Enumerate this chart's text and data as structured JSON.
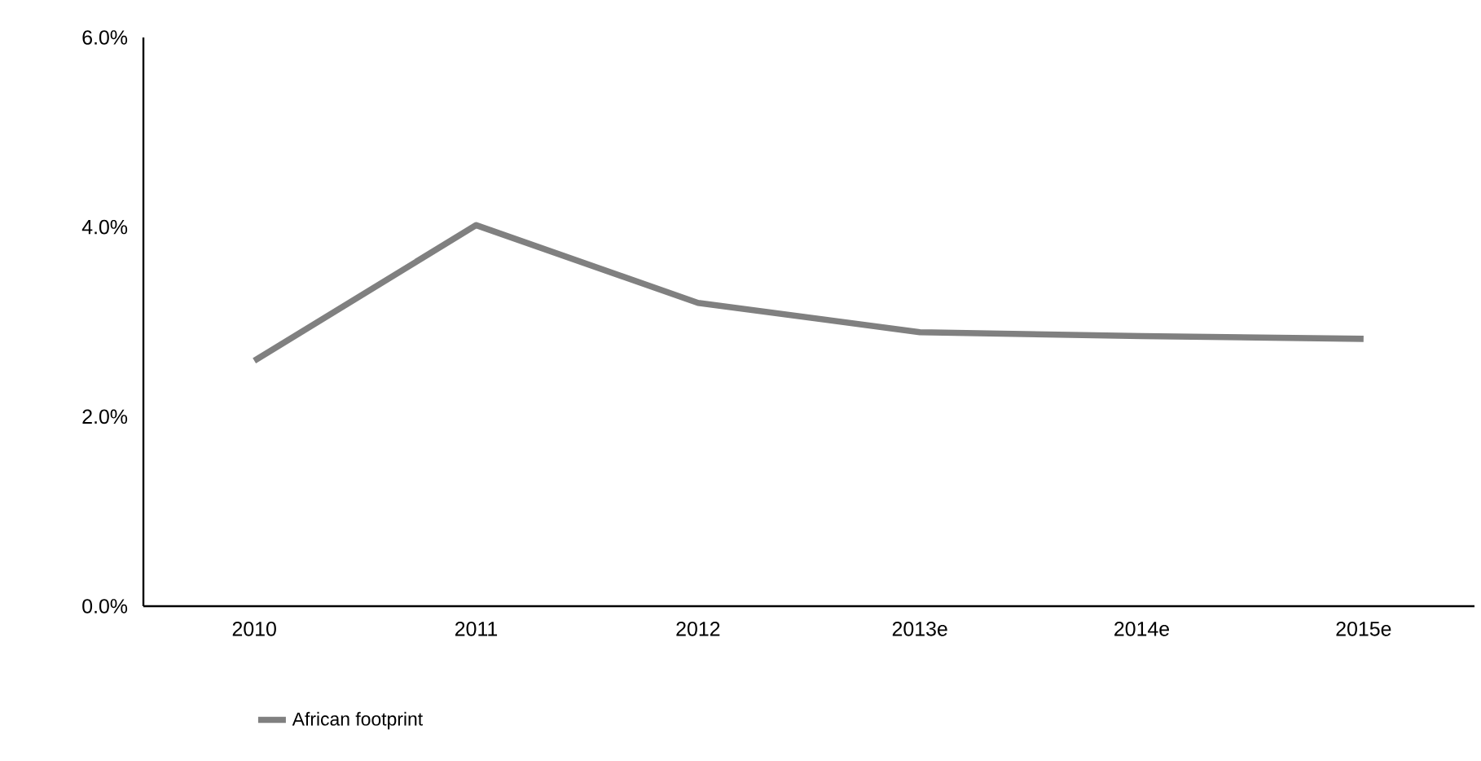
{
  "chart_data": {
    "type": "line",
    "categories": [
      "2010",
      "2011",
      "2012",
      "2013e",
      "2014e",
      "2015e"
    ],
    "series": [
      {
        "name": "African footprint",
        "color": "#808080",
        "values": [
          2.59,
          4.02,
          3.2,
          2.89,
          2.85,
          2.82
        ]
      }
    ],
    "ylim": [
      0,
      6
    ],
    "yticks": [
      {
        "value": 0,
        "label": "0.0%"
      },
      {
        "value": 2,
        "label": "2.0%"
      },
      {
        "value": 4,
        "label": "4.0%"
      },
      {
        "value": 6,
        "label": "6.0%"
      }
    ],
    "legend": "bottom",
    "marker": "none",
    "line_style": "solid",
    "grid": false
  }
}
